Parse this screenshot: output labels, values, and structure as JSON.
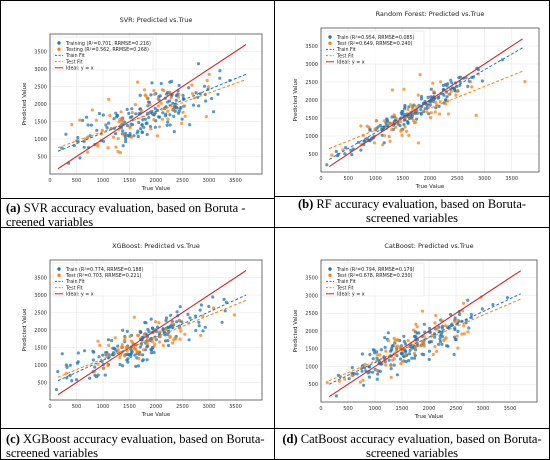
{
  "panels": [
    {
      "tag": "(a)",
      "caption": "SVR accuracy evaluation, based on Boruta -creened variables",
      "caption_align": "left",
      "chart_data": {
        "type": "scatter",
        "title": "SVR: Predicted vs.True",
        "xlabel": "True Value",
        "ylabel": "Predicted Value",
        "xlim": [
          0,
          4000
        ],
        "ylim": [
          0,
          4000
        ],
        "xticks": [
          0,
          500,
          1000,
          1500,
          2000,
          2500,
          3000,
          3500
        ],
        "yticks": [
          500,
          1000,
          1500,
          2000,
          2500,
          3000,
          3500
        ],
        "grid": true,
        "legend_position": "top-left",
        "legend": [
          "Training (R²=0.701, RRMSE=0.216)",
          "Testing (R²=0.562, RRMSE=0.268)",
          "Train Fit",
          "Test Fit",
          "Ideal: y = x"
        ],
        "fits": {
          "train": [
            [
              150,
              650
            ],
            [
              3700,
              2850
            ]
          ],
          "test": [
            [
              150,
              750
            ],
            [
              3700,
              2700
            ]
          ],
          "ideal": [
            [
              150,
              150
            ],
            [
              3700,
              3700
            ]
          ]
        },
        "point_counts": [
          170,
          70
        ],
        "spread": [
          320,
          360
        ]
      }
    },
    {
      "tag": "(b)",
      "caption": "RF accuracy evaluation, based on Boruta-screened variables",
      "caption_align": "center",
      "chart_data": {
        "type": "scatter",
        "title": "Random Forest: Predicted vs.True",
        "xlabel": "True Value",
        "ylabel": "Predicted Value",
        "xlim": [
          0,
          4000
        ],
        "ylim": [
          0,
          4000
        ],
        "xticks": [
          0,
          500,
          1000,
          1500,
          2000,
          2500,
          3000,
          3500
        ],
        "yticks": [
          500,
          1000,
          1500,
          2000,
          2500,
          3000,
          3500
        ],
        "grid": true,
        "legend_position": "top-left",
        "legend": [
          "Train (R²=0.954, RRMSE=0.085)",
          "Test  (R²=0.649, RRMSE=0.240)",
          "Train Fit",
          "Test Fit",
          "Ideal: y = x"
        ],
        "fits": {
          "train": [
            [
              150,
              350
            ],
            [
              3700,
              3450
            ]
          ],
          "test": [
            [
              150,
              650
            ],
            [
              3700,
              2800
            ]
          ],
          "ideal": [
            [
              150,
              150
            ],
            [
              3700,
              3700
            ]
          ]
        },
        "point_counts": [
          170,
          70
        ],
        "spread": [
          140,
          330
        ]
      }
    },
    {
      "tag": "(c)",
      "caption": "XGBoost accuracy evaluation, based on Boruta-screened variables",
      "caption_align": "left",
      "chart_data": {
        "type": "scatter",
        "title": "XGBoost: Predicted vs.True",
        "xlabel": "True Value",
        "ylabel": "Predicted Value",
        "xlim": [
          0,
          4000
        ],
        "ylim": [
          0,
          4000
        ],
        "xticks": [
          0,
          500,
          1000,
          1500,
          2000,
          2500,
          3000,
          3500
        ],
        "yticks": [
          500,
          1000,
          1500,
          2000,
          2500,
          3000,
          3500
        ],
        "grid": true,
        "legend_position": "top-left",
        "legend": [
          "Train  (R²=0.774, RRMSE=0.188)",
          "Test  (R²=0.703, RRMSE=0.221)",
          "Train Fit",
          "Test Fit",
          "Ideal: y = x"
        ],
        "fits": {
          "train": [
            [
              150,
              550
            ],
            [
              3700,
              3000
            ]
          ],
          "test": [
            [
              150,
              650
            ],
            [
              3700,
              2850
            ]
          ],
          "ideal": [
            [
              150,
              150
            ],
            [
              3700,
              3700
            ]
          ]
        },
        "point_counts": [
          170,
          70
        ],
        "spread": [
          280,
          300
        ]
      }
    },
    {
      "tag": "(d)",
      "caption": "CatBoost accuracy evaluation, based on Boruta-screened variables",
      "caption_align": "center",
      "chart_data": {
        "type": "scatter",
        "title": "CatBoost: Predicted vs.True",
        "xlabel": "True Value",
        "ylabel": "Predicted Value",
        "xlim": [
          0,
          4000
        ],
        "ylim": [
          0,
          4000
        ],
        "xticks": [
          0,
          500,
          1000,
          1500,
          2000,
          2500,
          3000,
          3500
        ],
        "yticks": [
          500,
          1000,
          1500,
          2000,
          2500,
          3000,
          3500
        ],
        "grid": true,
        "legend_position": "top-left",
        "legend": [
          "Train (R²=0.794, RRMSE=0.179)",
          "Test  (R²=0.678, RRMSE=0.230)",
          "Train Fit",
          "Test Fit",
          "Ideal: y = x"
        ],
        "fits": {
          "train": [
            [
              150,
              500
            ],
            [
              3700,
              3050
            ]
          ],
          "test": [
            [
              150,
              600
            ],
            [
              3700,
              2900
            ]
          ],
          "ideal": [
            [
              150,
              150
            ],
            [
              3700,
              3700
            ]
          ]
        },
        "point_counts": [
          170,
          70
        ],
        "spread": [
          270,
          310
        ]
      }
    }
  ],
  "colors": {
    "train": "#1f77b4",
    "test": "#ff7f0e",
    "ideal": "#d62728",
    "grid": "#e6e6e6",
    "border": "#000000"
  }
}
